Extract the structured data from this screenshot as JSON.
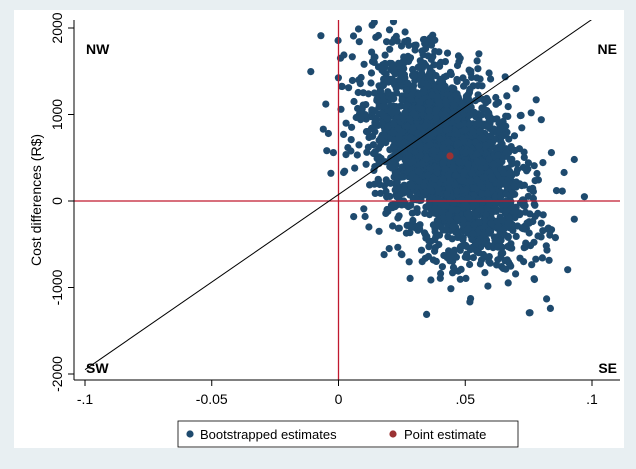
{
  "chart_data": {
    "type": "scatter",
    "title": "",
    "xlabel": "",
    "ylabel": "Cost differences (R$)",
    "xlim": [
      -0.1,
      0.11
    ],
    "ylim": [
      -2000,
      2000
    ],
    "x_ticks": [
      -0.1,
      -0.05,
      0,
      0.05,
      0.1
    ],
    "x_tick_labels": [
      "-.1",
      "-0.05",
      "0",
      ".05",
      ".1"
    ],
    "y_ticks": [
      -2000,
      -1000,
      0,
      1000,
      2000
    ],
    "y_tick_labels": [
      "-2000",
      "-1000",
      "0",
      "1000",
      "2000"
    ],
    "grid": false,
    "legend_position": "bottom",
    "reference_lines": {
      "x": 0,
      "y": 0,
      "color": "#c0192f"
    },
    "diagonal_line": {
      "from": [
        -0.1,
        -1950
      ],
      "to": [
        0.1,
        2100
      ],
      "color": "#000000"
    },
    "quadrant_labels": [
      "NW",
      "NE",
      "SW",
      "SE"
    ],
    "cloud": {
      "center": [
        0.043,
        500
      ],
      "x_halfwidth": 0.033,
      "y_halfheight": 1250,
      "corr": -0.45,
      "n_points": 3000
    },
    "series": [
      {
        "name": "Bootstrapped estimates",
        "color": "#1e4a6e",
        "points": [
          [
            0.113,
            310
          ],
          [
            0.097,
            50
          ],
          [
            0.093,
            480
          ],
          [
            0.093,
            -210
          ],
          [
            0.089,
            330
          ],
          [
            0.086,
            120
          ],
          [
            0.084,
            560
          ],
          [
            0.08,
            940
          ],
          [
            0.078,
            1170
          ],
          [
            0.076,
            1020
          ],
          [
            0.073,
            -700
          ],
          [
            0.07,
            1300
          ],
          [
            0.065,
            -780
          ],
          [
            0.06,
            1410
          ],
          [
            0.055,
            1530
          ],
          [
            0.048,
            1650
          ],
          [
            0.045,
            -830
          ],
          [
            0.043,
            1710
          ],
          [
            0.041,
            -760
          ],
          [
            0.038,
            1730
          ],
          [
            0.034,
            1820
          ],
          [
            0.03,
            1800
          ],
          [
            0.026,
            1600
          ],
          [
            0.021,
            1590
          ],
          [
            0.017,
            1530
          ],
          [
            0.013,
            1480
          ],
          [
            0.018,
            -620
          ],
          [
            0.02,
            -550
          ],
          [
            0.016,
            -350
          ],
          [
            0.012,
            -300
          ],
          [
            0.008,
            1400
          ],
          [
            0.004,
            1310
          ],
          [
            0.003,
            900
          ],
          [
            0.001,
            1060
          ],
          [
            0.002,
            330
          ],
          [
            -0.002,
            560
          ],
          [
            -0.003,
            320
          ],
          [
            -0.004,
            780
          ],
          [
            -0.006,
            830
          ],
          [
            -0.005,
            1120
          ],
          [
            0.006,
            -180
          ],
          [
            0.01,
            -90
          ],
          [
            0.025,
            -620
          ],
          [
            0.033,
            -700
          ],
          [
            0.05,
            -650
          ]
        ]
      },
      {
        "name": "Point estimate",
        "color": "#9b3233",
        "points": [
          [
            0.044,
            520
          ]
        ]
      }
    ]
  }
}
